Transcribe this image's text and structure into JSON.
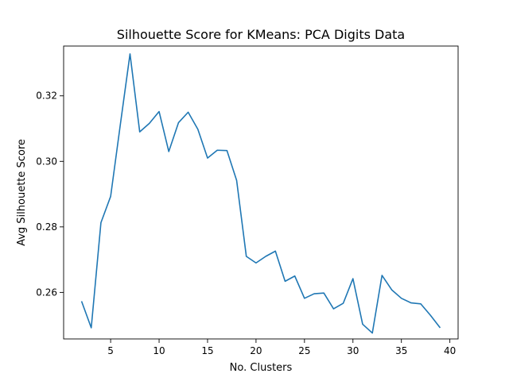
{
  "chart_data": {
    "type": "line",
    "title": "Silhouette Score for KMeans: PCA Digits Data",
    "xlabel": "No. Clusters",
    "ylabel": "Avg Silhouette Score",
    "xlim": [
      0.15,
      40.85
    ],
    "ylim": [
      0.2458,
      0.3352
    ],
    "xticks": [
      5,
      10,
      15,
      20,
      25,
      30,
      35,
      40
    ],
    "yticks": [
      0.26,
      0.28,
      0.3,
      0.32
    ],
    "ytick_labels": [
      "0.26",
      "0.28",
      "0.30",
      "0.32"
    ],
    "grid": false,
    "line_color": "#1f77b4",
    "series": [
      {
        "x": [
          2,
          3,
          4,
          5,
          6,
          7,
          8,
          9,
          10,
          11,
          12,
          13,
          14,
          15,
          16,
          17,
          18,
          19,
          20,
          21,
          22,
          23,
          24,
          25,
          26,
          27,
          28,
          29,
          30,
          31,
          32,
          33,
          34,
          35,
          36,
          37,
          38,
          39
        ],
        "values": [
          0.2573,
          0.2492,
          0.2813,
          0.2893,
          0.3112,
          0.3328,
          0.309,
          0.3116,
          0.3152,
          0.303,
          0.3118,
          0.315,
          0.3098,
          0.301,
          0.3034,
          0.3033,
          0.2942,
          0.271,
          0.269,
          0.271,
          0.2726,
          0.2634,
          0.265,
          0.2582,
          0.2596,
          0.2598,
          0.255,
          0.2567,
          0.2642,
          0.2503,
          0.2476,
          0.2652,
          0.2608,
          0.2582,
          0.2568,
          0.2565,
          0.253,
          0.2492
        ]
      }
    ]
  }
}
